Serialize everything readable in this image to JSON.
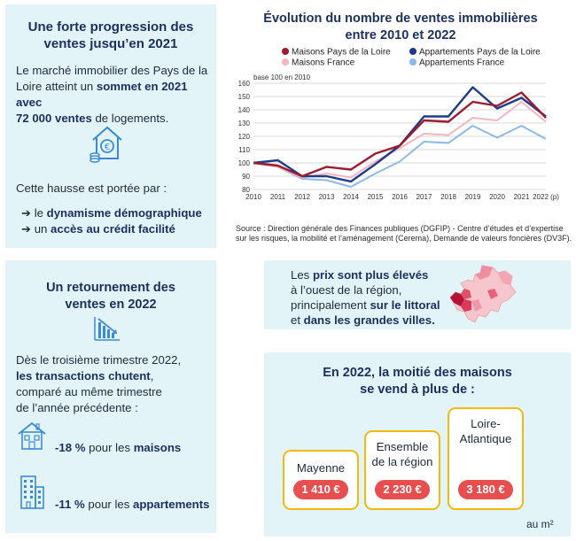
{
  "card1": {
    "title_line1": "Une forte progression des",
    "title_line2": "ventes jusqu’en 2021",
    "p1_line1": "Le marché immobilier des Pays de la",
    "p1_line2a": "Loire atteint un ",
    "p1_line2b": "sommet en 2021 avec",
    "p1_line3a": "72 000 ventes",
    "p1_line3b": " de logements.",
    "p2": "Cette hausse est portée par :",
    "item1_a": "➔ le ",
    "item1_b": "dynamisme démographique",
    "item2_a": "➔ un ",
    "item2_b": "accès au crédit facilité",
    "icon": "house-euro-icon"
  },
  "chart_title_line1": "Évolution du nombre de ventes immobilières",
  "chart_title_line2": "entre 2010 et 2022",
  "chart_data": {
    "type": "line",
    "ylabel": "base 100 en 2010",
    "ylim": [
      80,
      160
    ],
    "yticks": [
      80,
      90,
      100,
      110,
      120,
      130,
      140,
      150,
      160
    ],
    "x": [
      "2010",
      "2011",
      "2012",
      "2013",
      "2014",
      "2015",
      "2016",
      "2017",
      "2018",
      "2019",
      "2020",
      "2021",
      "2022 (p)"
    ],
    "grid": true,
    "legend_position": "top",
    "series": [
      {
        "name": "Maisons Pays de la Loire",
        "color": "#9b1b30",
        "values": [
          100,
          98,
          90,
          97,
          95,
          107,
          113,
          132,
          131,
          146,
          143,
          153,
          134
        ]
      },
      {
        "name": "Appartements Pays de la Loire",
        "color": "#1e3a8a",
        "values": [
          100,
          102,
          90,
          90,
          86,
          99,
          113,
          135,
          135,
          157,
          141,
          149,
          135
        ]
      },
      {
        "name": "Maisons France",
        "color": "#f4b6bf",
        "values": [
          100,
          97,
          89,
          92,
          89,
          101,
          111,
          122,
          121,
          134,
          132,
          146,
          131
        ]
      },
      {
        "name": "Appartements France",
        "color": "#8ab9ea",
        "values": [
          100,
          97,
          88,
          87,
          82,
          92,
          101,
          116,
          115,
          128,
          119,
          128,
          118
        ]
      }
    ]
  },
  "source_line1": "Source : Direction générale des Finances publiques (DGFIP) - Centre d’études et d’expertise",
  "source_line2": "sur les risques, la mobilité et l’aménagement (Cerema), Demande de valeurs foncières (DV3F).",
  "card2": {
    "title_line1": "Un retournement des",
    "title_line2": "ventes en 2022",
    "p_line1": "Dès le troisième trimestre 2022,",
    "p_line2": "les transactions chutent",
    "p_line2b": ",",
    "p_line3": "comparé au même trimestre",
    "p_line4": "de l’année précédente :",
    "stat1_a": "-18 %",
    "stat1_b": " pour les ",
    "stat1_c": "maisons",
    "stat2_a": "-11 %",
    "stat2_b": " pour les ",
    "stat2_c": "appartements",
    "icon_trend": "falling-chart-icon",
    "icon_house": "house-icon",
    "icon_building": "building-icon"
  },
  "card3": {
    "l1a": "Les ",
    "l1b": "prix sont plus élevés",
    "l2": "à l’ouest de la région,",
    "l3a": "principalement ",
    "l3b": "sur le littoral",
    "l4a": "et ",
    "l4b": "dans les grandes villes.",
    "icon": "region-map-icon"
  },
  "card4": {
    "title_line1": "En 2022, la moitié des maisons",
    "title_line2": "se vend à plus de :",
    "boxes": [
      {
        "name": "Mayenne",
        "price": "1 410 €"
      },
      {
        "name_line1": "Ensemble",
        "name_line2": "de la région",
        "price": "2 230 €"
      },
      {
        "name_line1": "Loire-",
        "name_line2": "Atlantique",
        "price": "3 180  €"
      }
    ],
    "unit": "au m²"
  }
}
